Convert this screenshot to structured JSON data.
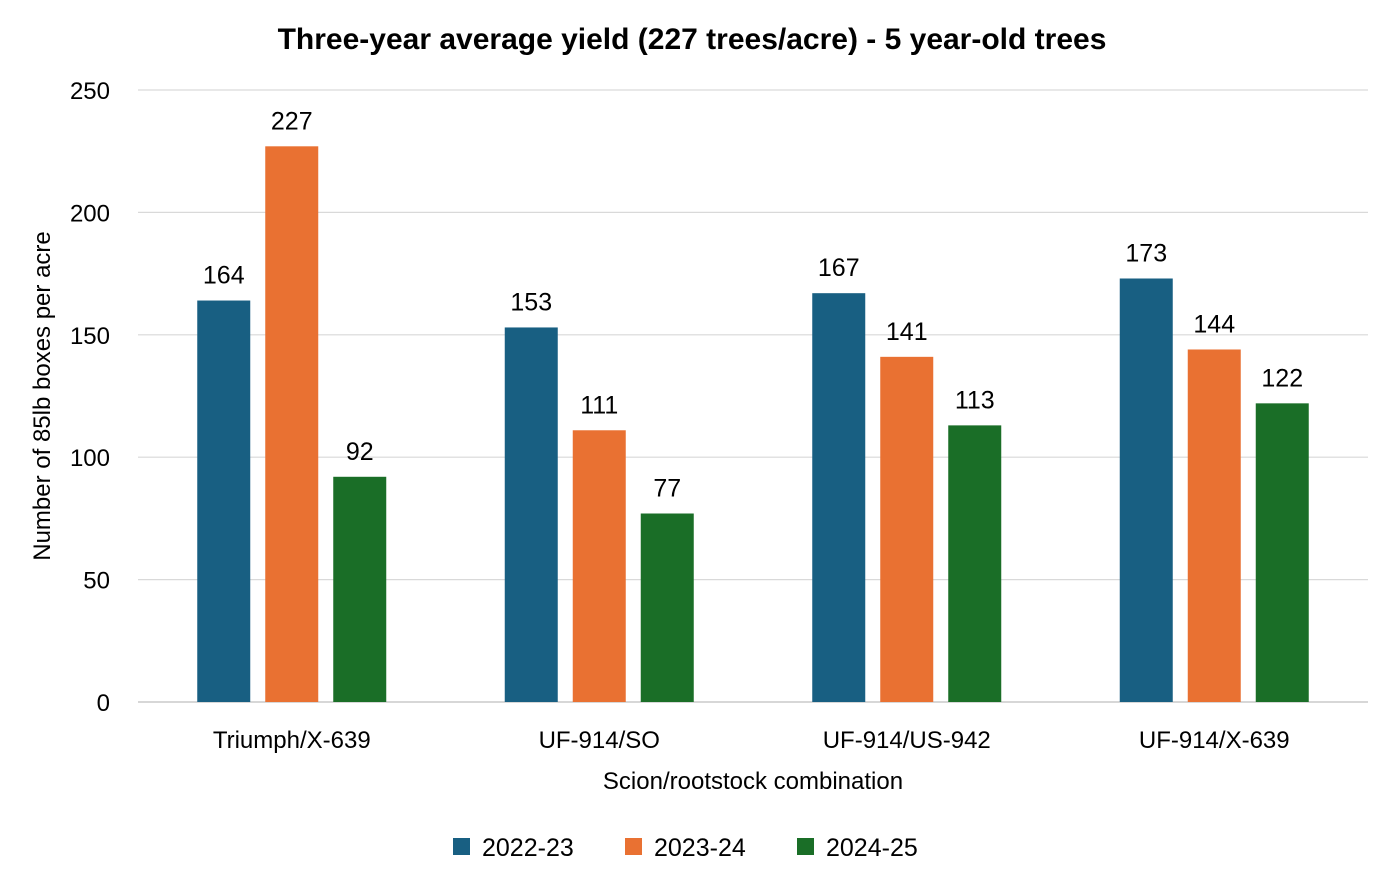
{
  "chart_data": {
    "type": "bar",
    "title": "Three-year average yield (227 trees/acre) - 5 year-old trees",
    "xlabel": "Scion/rootstock combination",
    "ylabel": "Number of 85lb boxes per acre",
    "ylim": [
      0,
      250
    ],
    "yticks": [
      0,
      50,
      100,
      150,
      200,
      250
    ],
    "grid": true,
    "legend_position": "bottom",
    "categories": [
      "Triumph/X-639",
      "UF-914/SO",
      "UF-914/US-942",
      "UF-914/X-639"
    ],
    "series": [
      {
        "name": "2022-23",
        "color": "#185F82",
        "values": [
          164,
          153,
          167,
          173
        ]
      },
      {
        "name": "2023-24",
        "color": "#E97132",
        "values": [
          227,
          111,
          141,
          144
        ]
      },
      {
        "name": "2024-25",
        "color": "#1A6E27",
        "values": [
          92,
          77,
          113,
          122
        ]
      }
    ]
  }
}
